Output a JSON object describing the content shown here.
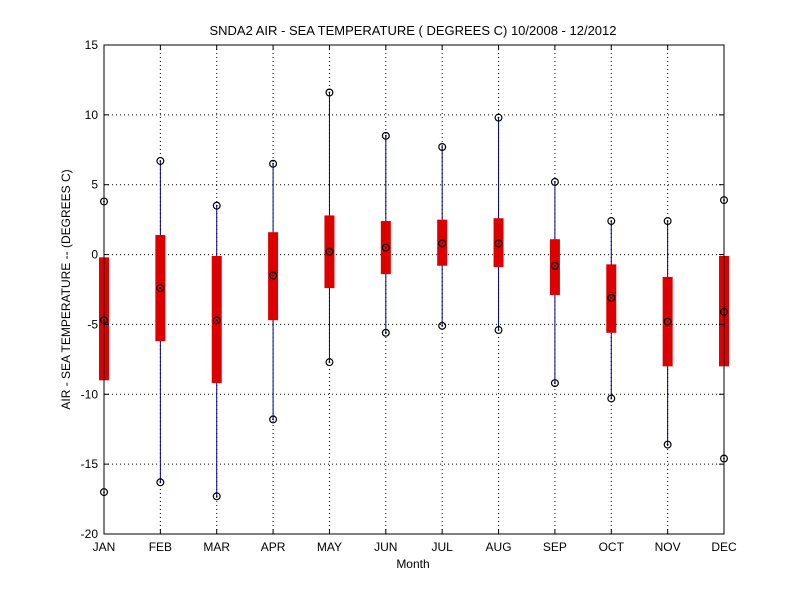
{
  "chart_data": {
    "type": "box",
    "title": "SNDA2  AIR - SEA TEMPERATURE ( DEGREES C) 10/2008 - 12/2012",
    "xlabel": "Month",
    "ylabel": "AIR - SEA TEMPERATURE -- (DEGREES C)",
    "categories": [
      "JAN",
      "FEB",
      "MAR",
      "APR",
      "MAY",
      "JUN",
      "JUL",
      "AUG",
      "SEP",
      "OCT",
      "NOV",
      "DEC"
    ],
    "ylim": [
      -20,
      15
    ],
    "yticks": [
      -20,
      -15,
      -10,
      -5,
      0,
      5,
      10,
      15
    ],
    "ytick_labels": [
      "-20",
      "-15",
      "-10",
      "-5",
      "0",
      "5",
      "10",
      "15"
    ],
    "grid": true,
    "series": [
      {
        "stat": "min",
        "values": [
          -17.0,
          -16.3,
          -17.3,
          -11.8,
          -7.7,
          -5.6,
          -5.1,
          -5.4,
          -9.2,
          -10.3,
          -13.6,
          -14.6
        ]
      },
      {
        "stat": "q1",
        "values": [
          -9.0,
          -6.2,
          -9.2,
          -4.7,
          -2.4,
          -1.4,
          -0.8,
          -0.9,
          -2.9,
          -5.6,
          -8.0,
          -8.0
        ]
      },
      {
        "stat": "median",
        "values": [
          -4.7,
          -2.4,
          -4.7,
          -1.5,
          0.2,
          0.5,
          0.8,
          0.8,
          -0.8,
          -3.1,
          -4.8,
          -4.1
        ]
      },
      {
        "stat": "q3",
        "values": [
          -0.2,
          1.4,
          -0.1,
          1.6,
          2.8,
          2.4,
          2.5,
          2.6,
          1.1,
          -0.7,
          -1.6,
          -0.1
        ]
      },
      {
        "stat": "max",
        "values": [
          3.8,
          6.7,
          3.5,
          6.5,
          11.6,
          8.5,
          7.7,
          9.8,
          5.2,
          2.4,
          2.4,
          3.9
        ]
      }
    ],
    "colors": {
      "whisker": "#00008b",
      "box": "#dd0000",
      "marker": "#000000"
    }
  }
}
